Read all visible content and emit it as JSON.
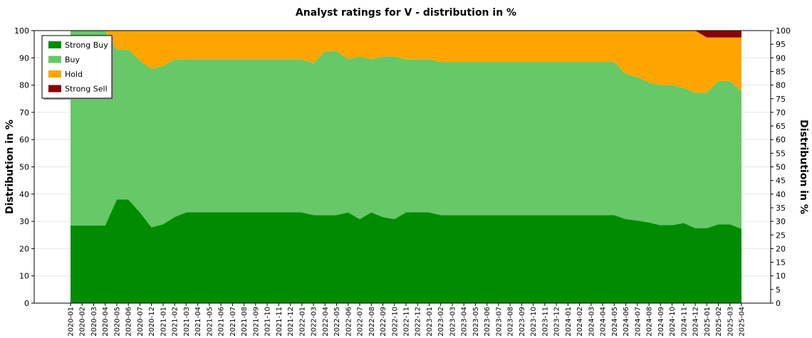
{
  "chart_data": {
    "type": "area",
    "stacked": true,
    "title": "Analyst ratings for V - distribution in %",
    "ylabel": "Distribution in %",
    "ylabel_right": "Distribution in %",
    "ylim": [
      0,
      100
    ],
    "yticks_left": [
      0,
      10,
      20,
      30,
      40,
      50,
      60,
      70,
      80,
      90,
      100
    ],
    "yticks_right": [
      0,
      5,
      10,
      15,
      20,
      25,
      30,
      35,
      40,
      45,
      50,
      55,
      60,
      65,
      70,
      75,
      80,
      85,
      90,
      95,
      100
    ],
    "legend_position": "top-left",
    "x": [
      "2020-01",
      "2020-02",
      "2020-03",
      "2020-04",
      "2020-05",
      "2020-06",
      "2020-07",
      "2020-12",
      "2021-01",
      "2021-02",
      "2021-03",
      "2021-04",
      "2021-05",
      "2021-06",
      "2021-07",
      "2021-08",
      "2021-09",
      "2021-10",
      "2021-11",
      "2021-12",
      "2022-01",
      "2022-03",
      "2022-04",
      "2022-05",
      "2022-06",
      "2022-07",
      "2022-08",
      "2022-09",
      "2022-10",
      "2022-11",
      "2022-12",
      "2023-01",
      "2023-02",
      "2023-03",
      "2023-04",
      "2023-05",
      "2023-06",
      "2023-07",
      "2023-08",
      "2023-09",
      "2023-10",
      "2023-11",
      "2023-12",
      "2024-01",
      "2024-02",
      "2024-03",
      "2024-04",
      "2024-05",
      "2024-06",
      "2024-07",
      "2024-08",
      "2024-09",
      "2024-10",
      "2024-11",
      "2024-12",
      "2025-01",
      "2025-02",
      "2025-03",
      "2025-04"
    ],
    "series": [
      {
        "name": "Strong Buy",
        "color": "#008c00",
        "values": [
          28.5,
          28.5,
          28.5,
          28.5,
          38,
          38,
          33.3,
          27.8,
          28.9,
          31.6,
          33.3,
          33.3,
          33.3,
          33.3,
          33.3,
          33.3,
          33.3,
          33.3,
          33.3,
          33.3,
          33.3,
          32.3,
          32.3,
          32.3,
          33.3,
          30.8,
          33.3,
          31.6,
          30.8,
          33.3,
          33.3,
          33.3,
          32.3,
          32.3,
          32.3,
          32.3,
          32.3,
          32.3,
          32.3,
          32.3,
          32.3,
          32.3,
          32.3,
          32.3,
          32.3,
          32.3,
          32.3,
          32.3,
          30.8,
          30.3,
          29.6,
          28.6,
          28.6,
          29.4,
          27.5,
          27.5,
          28.9,
          28.9,
          27.3
        ]
      },
      {
        "name": "Buy",
        "color": "#66c866",
        "values": [
          71.5,
          71.5,
          71.5,
          71.5,
          55,
          55,
          55.7,
          58.2,
          58.1,
          57.8,
          56.1,
          56.2,
          56.2,
          56.2,
          56.2,
          56.2,
          56.2,
          56.2,
          56.2,
          56.2,
          56.2,
          55.7,
          60.2,
          60.2,
          56.2,
          59.7,
          56.2,
          58.9,
          59.7,
          56.2,
          56.2,
          56.2,
          56.2,
          56.2,
          56.2,
          56.2,
          56.2,
          56.2,
          56.2,
          56.2,
          56.2,
          56.2,
          56.2,
          56.2,
          56.2,
          56.2,
          56.2,
          56.2,
          53.2,
          52.7,
          51.4,
          51.4,
          51.4,
          49.6,
          49.7,
          49.7,
          52.6,
          52.6,
          50.4
        ]
      },
      {
        "name": "Hold",
        "color": "#ffa500",
        "values": [
          0,
          0,
          0,
          0,
          7,
          7,
          11,
          14,
          13,
          10.6,
          10.6,
          10.5,
          10.5,
          10.5,
          10.5,
          10.5,
          10.5,
          10.5,
          10.5,
          10.5,
          10.5,
          12,
          7.5,
          7.5,
          10.5,
          9.5,
          10.5,
          9.5,
          9.5,
          10.5,
          10.5,
          10.5,
          11.5,
          11.5,
          11.5,
          11.5,
          11.5,
          11.5,
          11.5,
          11.5,
          11.5,
          11.5,
          11.5,
          11.5,
          11.5,
          11.5,
          11.5,
          11.5,
          16,
          17,
          19,
          20,
          20,
          21,
          22.8,
          20.3,
          16,
          16,
          19.8
        ]
      },
      {
        "name": "Strong Sell",
        "color": "#8b0000",
        "values": [
          0,
          0,
          0,
          0,
          0,
          0,
          0,
          0,
          0,
          0,
          0,
          0,
          0,
          0,
          0,
          0,
          0,
          0,
          0,
          0,
          0,
          0,
          0,
          0,
          0,
          0,
          0,
          0,
          0,
          0,
          0,
          0,
          0,
          0,
          0,
          0,
          0,
          0,
          0,
          0,
          0,
          0,
          0,
          0,
          0,
          0,
          0,
          0,
          0,
          0,
          0,
          0,
          0,
          0,
          0,
          2.5,
          2.5,
          2.5,
          2.5
        ]
      }
    ]
  }
}
